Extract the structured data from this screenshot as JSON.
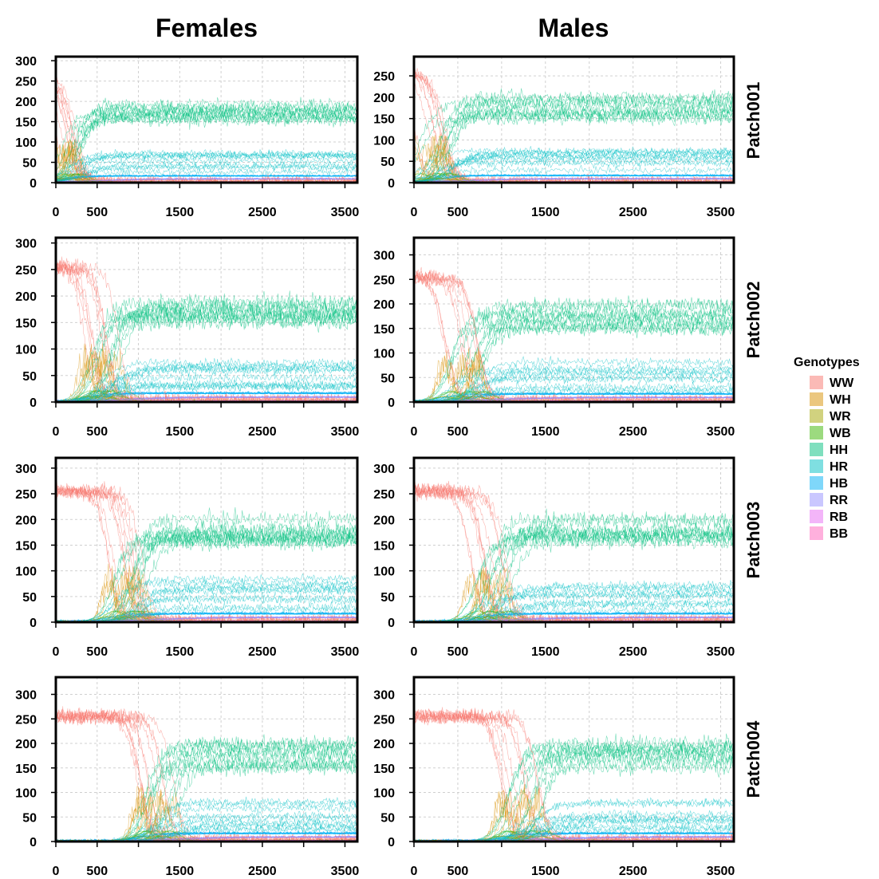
{
  "chart_data": {
    "type": "line",
    "column_titles": [
      "Females",
      "Males"
    ],
    "row_titles": [
      "Patch001",
      "Patch002",
      "Patch003",
      "Patch004"
    ],
    "legend": {
      "title": "Genotypes",
      "placement": "right",
      "entries": [
        {
          "label": "WW",
          "color": "#F8766D"
        },
        {
          "label": "WH",
          "color": "#D89000"
        },
        {
          "label": "WR",
          "color": "#A3A500"
        },
        {
          "label": "WB",
          "color": "#39B600"
        },
        {
          "label": "HH",
          "color": "#00BF7D"
        },
        {
          "label": "HR",
          "color": "#00BFC4"
        },
        {
          "label": "HB",
          "color": "#00B0F6"
        },
        {
          "label": "RR",
          "color": "#9590FF"
        },
        {
          "label": "RB",
          "color": "#E76BF3"
        },
        {
          "label": "BB",
          "color": "#FF62BC"
        }
      ]
    },
    "x_ticks": [
      "0",
      "500",
      "1500",
      "2500",
      "3500"
    ],
    "x_tick_values": [
      0,
      500,
      1500,
      2500,
      3500
    ],
    "xlim": [
      0,
      3650
    ],
    "grid": true,
    "panels": [
      {
        "patch": "Patch001",
        "sex": "Females",
        "ylim": [
          0,
          310
        ],
        "y_ticks": [
          "0",
          "50",
          "100",
          "150",
          "200",
          "250",
          "300"
        ],
        "y_tick_values": [
          0,
          50,
          100,
          150,
          200,
          250,
          300
        ]
      },
      {
        "patch": "Patch001",
        "sex": "Males",
        "ylim": [
          0,
          295
        ],
        "y_ticks": [
          "0",
          "50",
          "100",
          "150",
          "200",
          "250"
        ],
        "y_tick_values": [
          0,
          50,
          100,
          150,
          200,
          250
        ]
      },
      {
        "patch": "Patch002",
        "sex": "Females",
        "ylim": [
          0,
          310
        ],
        "y_ticks": [
          "0",
          "50",
          "100",
          "150",
          "200",
          "250",
          "300"
        ],
        "y_tick_values": [
          0,
          50,
          100,
          150,
          200,
          250,
          300
        ]
      },
      {
        "patch": "Patch002",
        "sex": "Males",
        "ylim": [
          0,
          335
        ],
        "y_ticks": [
          "0",
          "50",
          "100",
          "150",
          "200",
          "250",
          "300"
        ],
        "y_tick_values": [
          0,
          50,
          100,
          150,
          200,
          250,
          300
        ]
      },
      {
        "patch": "Patch003",
        "sex": "Females",
        "ylim": [
          0,
          320
        ],
        "y_ticks": [
          "0",
          "50",
          "100",
          "150",
          "200",
          "250",
          "300"
        ],
        "y_tick_values": [
          0,
          50,
          100,
          150,
          200,
          250,
          300
        ]
      },
      {
        "patch": "Patch003",
        "sex": "Males",
        "ylim": [
          0,
          320
        ],
        "y_ticks": [
          "0",
          "50",
          "100",
          "150",
          "200",
          "250",
          "300"
        ],
        "y_tick_values": [
          0,
          50,
          100,
          150,
          200,
          250,
          300
        ]
      },
      {
        "patch": "Patch004",
        "sex": "Females",
        "ylim": [
          0,
          335
        ],
        "y_ticks": [
          "0",
          "50",
          "100",
          "150",
          "200",
          "250",
          "300"
        ],
        "y_tick_values": [
          0,
          50,
          100,
          150,
          200,
          250,
          300
        ]
      },
      {
        "patch": "Patch004",
        "sex": "Males",
        "ylim": [
          0,
          335
        ],
        "y_ticks": [
          "0",
          "50",
          "100",
          "150",
          "200",
          "250",
          "300"
        ],
        "y_tick_values": [
          0,
          50,
          100,
          150,
          200,
          250,
          300
        ]
      }
    ],
    "dynamics": {
      "n_runs": 10,
      "WW_initial": 255,
      "WW_collapse_day": [
        180,
        550,
        850,
        1200
      ],
      "WH_peak": 95,
      "HH_plateau": 175,
      "HR_plateau": 50,
      "WB_peak": 20,
      "RR_level": 8,
      "HB_level": 15
    }
  }
}
